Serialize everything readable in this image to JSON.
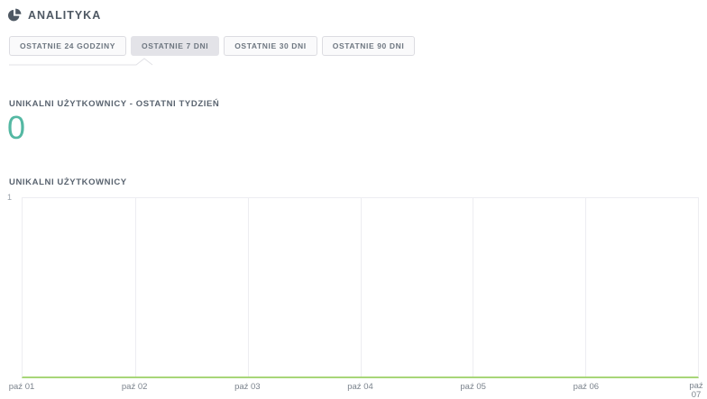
{
  "header": {
    "title": "ANALITYKA"
  },
  "tabs": [
    {
      "label": "OSTATNIE 24 GODZINY",
      "active": false
    },
    {
      "label": "OSTATNIE 7 DNI",
      "active": true
    },
    {
      "label": "OSTATNIE 30 DNI",
      "active": false
    },
    {
      "label": "OSTATNIE 90 DNI",
      "active": false
    }
  ],
  "kpi": {
    "label": "UNIKALNI UŻYTKOWNICY - OSTATNI TYDZIEŃ",
    "value": "0"
  },
  "chart_data": {
    "type": "line",
    "title": "UNIKALNI UŻYTKOWNICY",
    "x": [
      "paź 01",
      "paź 02",
      "paź 03",
      "paź 04",
      "paź 05",
      "paź 06",
      "paź 07"
    ],
    "series": [
      {
        "name": "Unikalni użytkownicy",
        "values": [
          0,
          0,
          0,
          0,
          0,
          0,
          0
        ]
      }
    ],
    "ylim": [
      0,
      1
    ],
    "yticks": [
      "1"
    ],
    "grid": true,
    "legend": "none",
    "line_color": "#a8d678"
  },
  "colors": {
    "accent_teal": "#54b8a3",
    "line_green": "#a8d678",
    "heading_text": "#59636f",
    "header_icon": "#4e5863",
    "grid_line": "#ededf1"
  }
}
